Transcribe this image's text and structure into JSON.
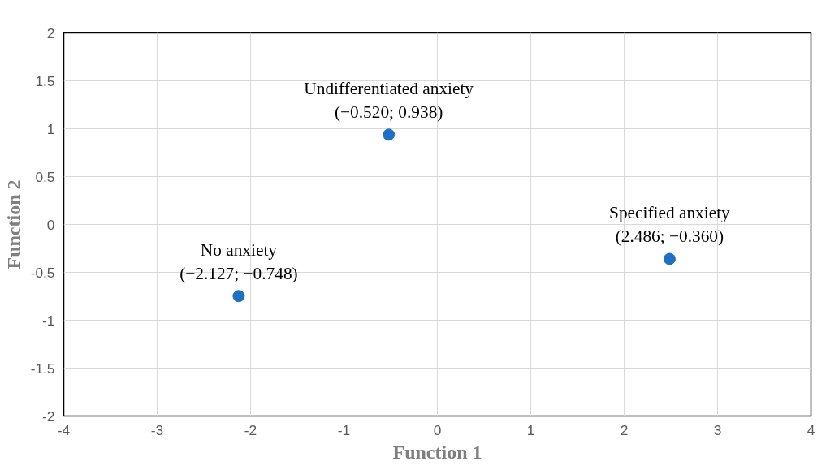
{
  "chart_data": {
    "type": "scatter",
    "xlabel": "Function 1",
    "ylabel": "Function 2",
    "x": [
      -2.127,
      -0.52,
      2.486
    ],
    "series": [
      {
        "color": "#1f6fc4",
        "values": [
          -0.748,
          0.938,
          -0.36
        ]
      }
    ],
    "xlim": [
      -4,
      4
    ],
    "xticks": [
      -4,
      -3,
      -2,
      -1,
      0,
      1,
      2,
      3,
      4
    ],
    "ylim": [
      -2,
      2
    ],
    "yticks": [
      -2,
      -1.5,
      -1,
      -0.5,
      0,
      0.5,
      1,
      1.5,
      2
    ],
    "grid": true,
    "marker": "circle",
    "annotations": [
      {
        "text": "No anxiety\n(−2.127; −0.748)",
        "x": -2.127,
        "y": -0.748
      },
      {
        "text": "Undifferentiated anxiety\n(−0.520; 0.938)",
        "x": -0.52,
        "y": 0.938
      },
      {
        "text": "Specified anxiety\n(2.486; −0.360)",
        "x": 2.486,
        "y": -0.36
      }
    ]
  }
}
